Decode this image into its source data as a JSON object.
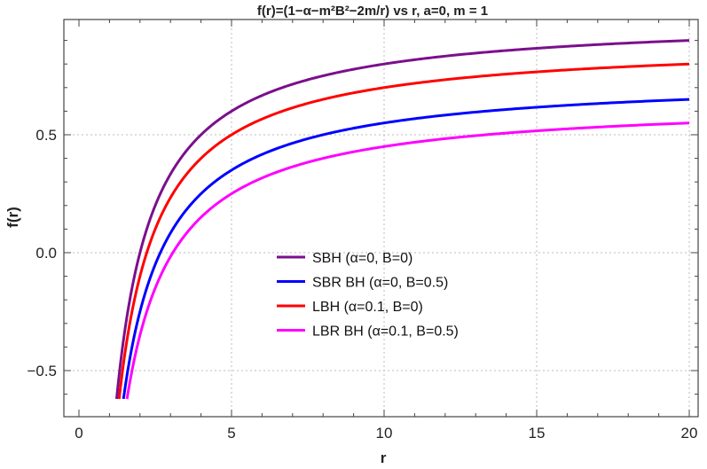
{
  "chart_data": {
    "type": "line",
    "title": "f(r)=(1−α−m²B²−2m/r) vs r,  a=0, m = 1",
    "xlabel": "r",
    "ylabel": "f(r)",
    "xlim": [
      -0.5,
      20.3
    ],
    "ylim": [
      -0.7,
      1.0
    ],
    "xticks": [
      "0",
      "5",
      "10",
      "15",
      "20"
    ],
    "yticks": [
      "-0.5",
      "0.0",
      "0.5"
    ],
    "grid": true,
    "legend_position": "center",
    "x_range_plotted": [
      1.2,
      20
    ],
    "y_min_plotted": -0.62,
    "series": [
      {
        "name": "SBH (α=0, B=0)",
        "alpha": 0,
        "B": 0,
        "color": "#7b0f8c"
      },
      {
        "name": "SBR BH (α=0, B=0.5)",
        "alpha": 0,
        "B": 0.5,
        "color": "#0000ff"
      },
      {
        "name": "LBH (α=0.1, B=0)",
        "alpha": 0.1,
        "B": 0,
        "color": "#ff0000"
      },
      {
        "name": "LBR BH (α=0.1, B=0.5)",
        "alpha": 0.1,
        "B": 0.5,
        "color": "#ff00ff"
      }
    ],
    "m": 1
  }
}
